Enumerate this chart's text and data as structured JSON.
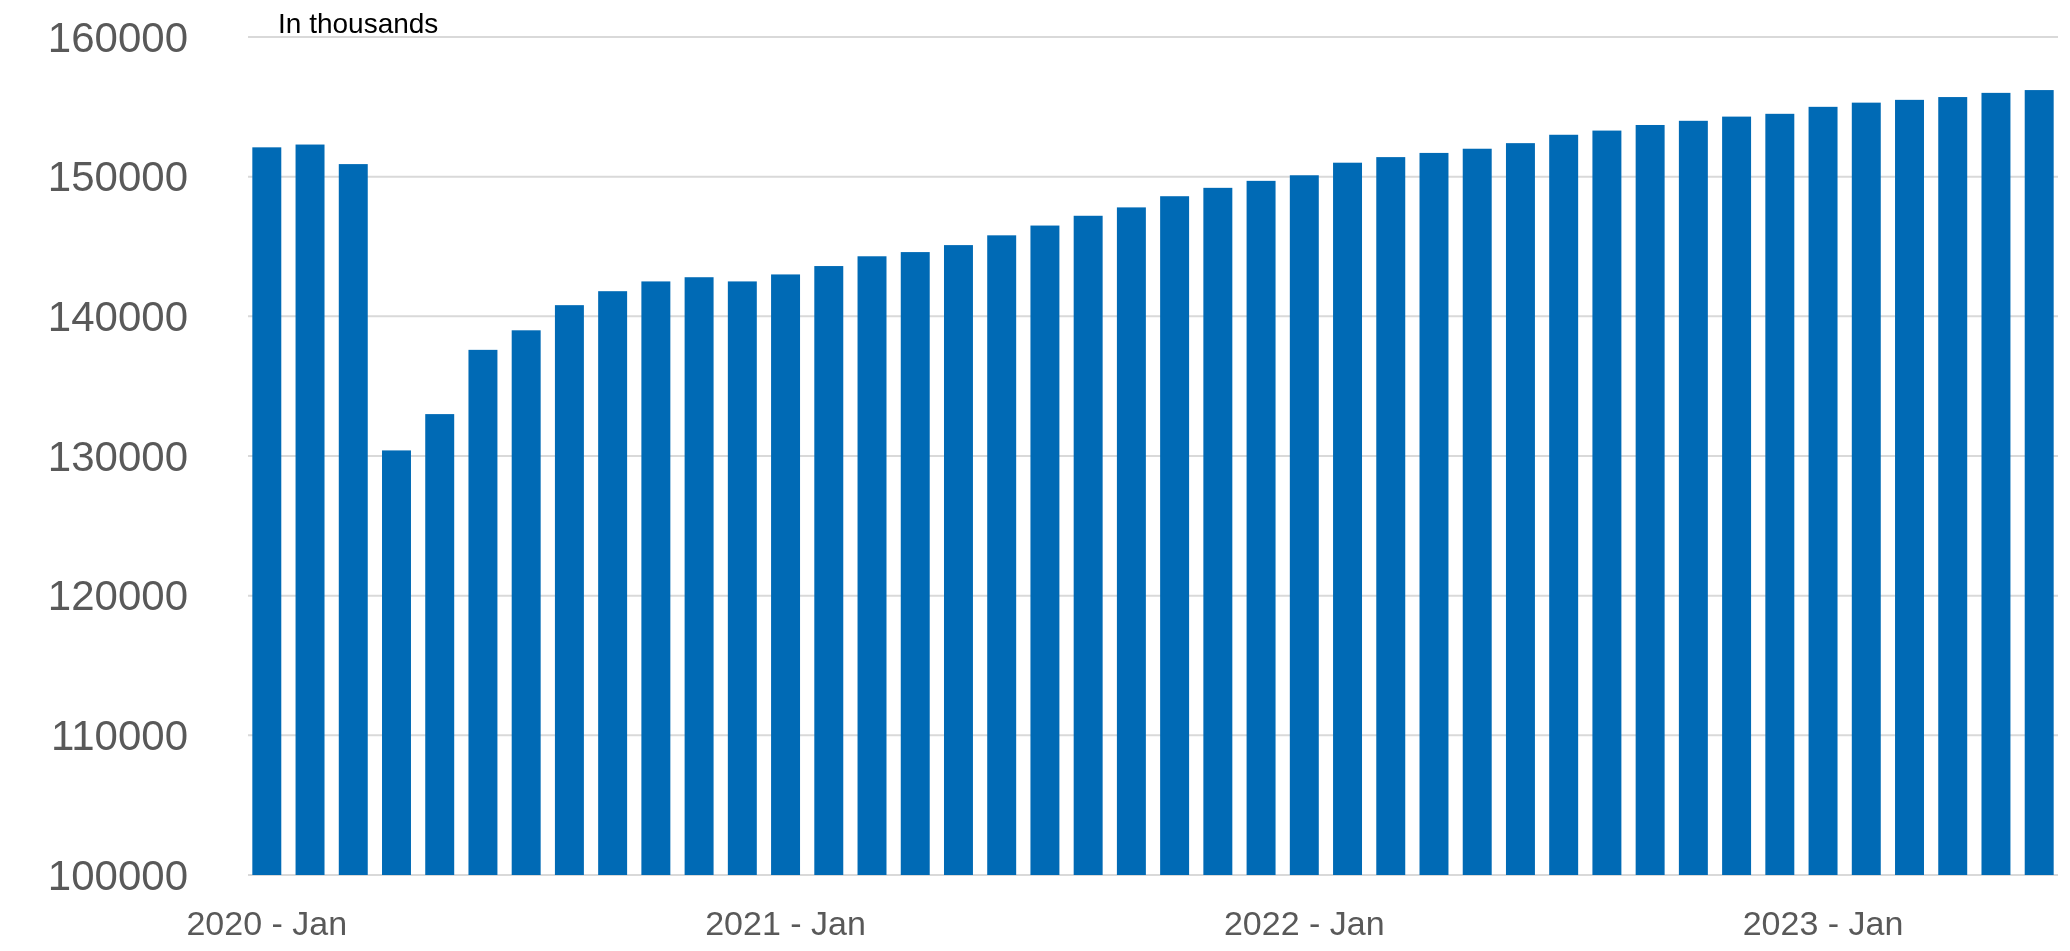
{
  "chart_data": {
    "type": "bar",
    "annotations": [
      "In thousands"
    ],
    "categories": [
      "2020 - Jan",
      null,
      null,
      null,
      null,
      null,
      null,
      null,
      null,
      null,
      null,
      null,
      "2021 - Jan",
      null,
      null,
      null,
      null,
      null,
      null,
      null,
      null,
      null,
      null,
      null,
      "2022 - Jan",
      null,
      null,
      null,
      null,
      null,
      null,
      null,
      null,
      null,
      null,
      null,
      "2023 - Jan",
      null,
      null,
      null,
      null,
      null
    ],
    "values": [
      152100,
      152300,
      150900,
      130400,
      133000,
      137600,
      139000,
      140800,
      141800,
      142500,
      142800,
      142500,
      143000,
      143600,
      144300,
      144600,
      145100,
      145800,
      146500,
      147200,
      147800,
      148600,
      149200,
      149700,
      150100,
      151000,
      151400,
      151700,
      152000,
      152400,
      153000,
      153300,
      153700,
      154000,
      154300,
      154500,
      155000,
      155300,
      155500,
      155700,
      156000,
      156200
    ],
    "color": "#006ab5",
    "ylim": [
      100000,
      160000
    ],
    "yticks": [
      100000,
      110000,
      120000,
      130000,
      140000,
      150000,
      160000
    ],
    "grid": "y"
  }
}
